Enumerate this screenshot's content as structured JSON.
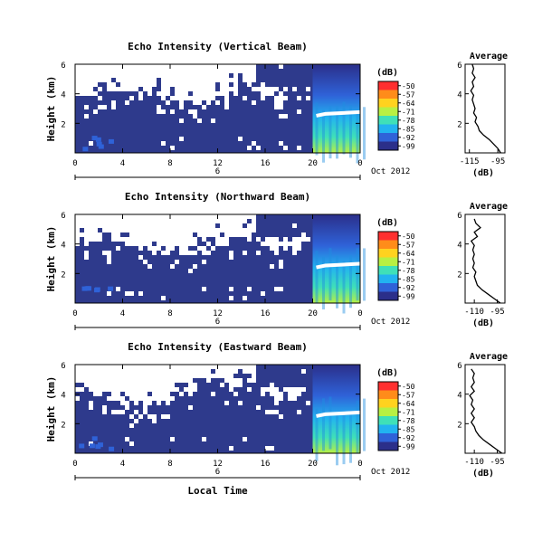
{
  "chart_data": [
    {
      "type": "heatmap",
      "title": "Echo Intensity (Vertical Beam)",
      "ylabel": "Height (km)",
      "x_ticks": [
        "0",
        "4",
        "8",
        "12",
        "16",
        "20",
        "0"
      ],
      "y_ticks": [
        "6",
        "4",
        "2"
      ],
      "xlim": [
        0,
        24
      ],
      "ylim": [
        0,
        6
      ],
      "date_marker": "6",
      "date_label": "Oct 2012",
      "colorbar": {
        "unit": "(dB)",
        "ticks": [
          "-50",
          "-57",
          "-64",
          "-71",
          "-78",
          "-85",
          "-92",
          "-99"
        ]
      },
      "layer_height_km": 2.7,
      "average_panel": {
        "type": "line",
        "title": "Average",
        "xlabel": "(dB)",
        "x_ticks": [
          "-115",
          "-95"
        ],
        "y_ticks": [
          "6",
          "4",
          "2"
        ],
        "xlim": [
          -118,
          -90
        ],
        "ylim": [
          0,
          6
        ],
        "profile": {
          "height_km": [
            0.0,
            0.3,
            0.6,
            0.9,
            1.2,
            1.5,
            1.8,
            2.1,
            2.4,
            2.7,
            3.0,
            3.3,
            3.6,
            3.9,
            4.2,
            4.5,
            4.8,
            5.1,
            5.4,
            5.7,
            6.0
          ],
          "value_db": [
            -93,
            -95,
            -98,
            -101,
            -105,
            -108,
            -109,
            -111,
            -110,
            -112,
            -111,
            -112,
            -113,
            -112,
            -114,
            -112,
            -113,
            -111,
            -113,
            -112,
            -113
          ]
        }
      }
    },
    {
      "type": "heatmap",
      "title": "Echo Intensity (Northward Beam)",
      "ylabel": "Height (km)",
      "x_ticks": [
        "0",
        "4",
        "8",
        "12",
        "16",
        "20",
        "0"
      ],
      "y_ticks": [
        "6",
        "4",
        "2"
      ],
      "xlim": [
        0,
        24
      ],
      "ylim": [
        0,
        6
      ],
      "date_marker": "6",
      "date_label": "Oct 2012",
      "colorbar": {
        "unit": "(dB)",
        "ticks": [
          "-50",
          "-57",
          "-64",
          "-71",
          "-78",
          "-85",
          "-92",
          "-99"
        ]
      },
      "layer_height_km": 2.6,
      "average_panel": {
        "type": "line",
        "title": "Average",
        "xlabel": "(dB)",
        "x_ticks": [
          "-110",
          "-95"
        ],
        "y_ticks": [
          "6",
          "4",
          "2"
        ],
        "xlim": [
          -116,
          -90
        ],
        "ylim": [
          0,
          6
        ],
        "profile": {
          "height_km": [
            0.0,
            0.3,
            0.6,
            0.9,
            1.2,
            1.5,
            1.8,
            2.1,
            2.4,
            2.7,
            3.0,
            3.3,
            3.6,
            3.9,
            4.2,
            4.5,
            4.8,
            5.1,
            5.4,
            5.7
          ],
          "value_db": [
            -93,
            -97,
            -101,
            -105,
            -108,
            -109,
            -110,
            -109,
            -111,
            -110,
            -111,
            -110,
            -111,
            -110,
            -112,
            -108,
            -110,
            -106,
            -109,
            -110
          ]
        }
      }
    },
    {
      "type": "heatmap",
      "title": "Echo Intensity (Eastward Beam)",
      "ylabel": "Height (km)",
      "xlabel": "Local Time",
      "x_ticks": [
        "0",
        "4",
        "8",
        "12",
        "16",
        "20",
        "0"
      ],
      "y_ticks": [
        "6",
        "4",
        "2"
      ],
      "xlim": [
        0,
        24
      ],
      "ylim": [
        0,
        6
      ],
      "date_marker": "6",
      "date_label": "Oct 2012",
      "colorbar": {
        "unit": "(dB)",
        "ticks": [
          "-50",
          "-57",
          "-64",
          "-71",
          "-78",
          "-85",
          "-92",
          "-99"
        ]
      },
      "layer_height_km": 2.7,
      "average_panel": {
        "type": "line",
        "title": "Average",
        "xlabel": "(dB)",
        "x_ticks": [
          "-110",
          "-95"
        ],
        "y_ticks": [
          "6",
          "4",
          "2"
        ],
        "xlim": [
          -116,
          -90
        ],
        "ylim": [
          0,
          6
        ],
        "profile": {
          "height_km": [
            0.0,
            0.3,
            0.6,
            0.9,
            1.2,
            1.5,
            1.8,
            2.1,
            2.4,
            2.7,
            3.0,
            3.3,
            3.6,
            3.9,
            4.2,
            4.5,
            4.8,
            5.1,
            5.4,
            5.7
          ],
          "value_db": [
            -92,
            -96,
            -100,
            -104,
            -107,
            -109,
            -110,
            -112,
            -110,
            -112,
            -110,
            -112,
            -111,
            -113,
            -110,
            -112,
            -110,
            -111,
            -110,
            -112
          ]
        }
      }
    }
  ],
  "palette": {
    "background_low": "#2e3a8c",
    "cloud_gap": "#ffffff",
    "colorbar_stops": [
      "#ff2f2f",
      "#ff8c1a",
      "#ffd21f",
      "#b8f043",
      "#3fe0b8",
      "#22b3f0",
      "#2f62d8",
      "#2b2f8a"
    ]
  }
}
